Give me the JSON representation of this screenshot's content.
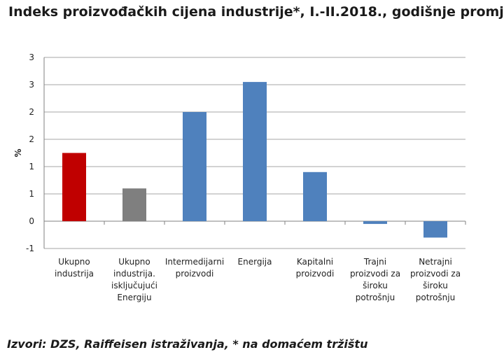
{
  "title": "Indeks proizvođačkih cijena industrije*, I.-II.2018., godišnje promj",
  "source": "Izvori: DZS, Raiffeisen istraživanja, * na domaćem tržištu",
  "chart_data": {
    "type": "bar",
    "ylabel": "%",
    "ylim": [
      -0.5,
      3.0
    ],
    "ytick_values": [
      -0.5,
      0,
      0.5,
      1.0,
      1.5,
      2.0,
      2.5,
      3.0
    ],
    "ytick_labels": [
      "-1",
      "0",
      "1",
      "1",
      "2",
      "2",
      "3",
      "3"
    ],
    "grid": true,
    "categories": [
      [
        "Ukupno",
        "industrija"
      ],
      [
        "Ukupno",
        "industrija.",
        "isključujući",
        "Energiju"
      ],
      [
        "Intermedijarni",
        "proizvodi"
      ],
      [
        "Energija"
      ],
      [
        "Kapitalni",
        "proizvodi"
      ],
      [
        "Trajni",
        "proizvodi za",
        "široku",
        "potrošnju"
      ],
      [
        "Netrajni",
        "proizvodi za",
        "široku",
        "potrošnju"
      ]
    ],
    "values": [
      1.25,
      0.6,
      2.0,
      2.55,
      0.9,
      -0.05,
      -0.3
    ],
    "colors": [
      "#c00000",
      "#7f7f7f",
      "#4f81bd",
      "#4f81bd",
      "#4f81bd",
      "#4f81bd",
      "#4f81bd"
    ]
  }
}
